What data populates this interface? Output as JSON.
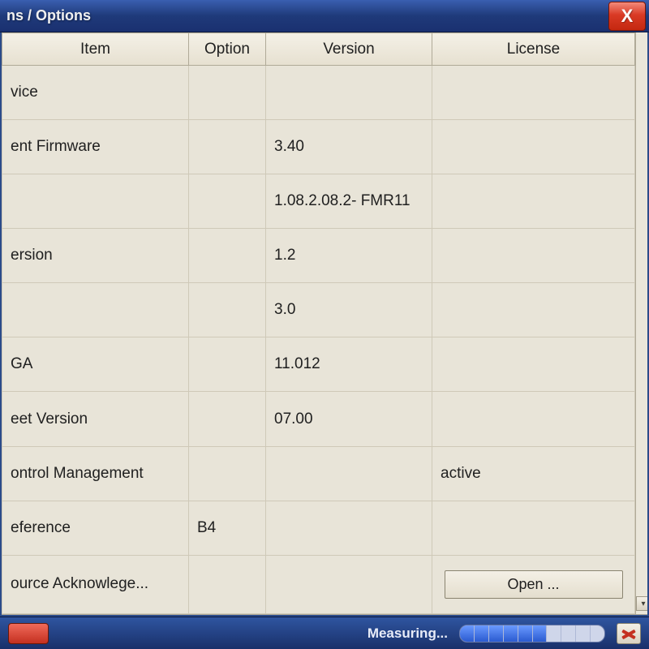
{
  "window": {
    "title": "ns / Options",
    "close_glyph": "X"
  },
  "columns": {
    "item": "Item",
    "option": "Option",
    "version": "Version",
    "license": "License"
  },
  "rows": [
    {
      "item": "vice",
      "option": "",
      "version": "",
      "license": ""
    },
    {
      "item": "ent Firmware",
      "option": "",
      "version": "3.40",
      "license": ""
    },
    {
      "item": "",
      "option": "",
      "version": "1.08.2.08.2- FMR11",
      "license": ""
    },
    {
      "item": "ersion",
      "option": "",
      "version": "1.2",
      "license": ""
    },
    {
      "item": "",
      "option": "",
      "version": "3.0",
      "license": ""
    },
    {
      "item": "GA",
      "option": "",
      "version": "11.012",
      "license": ""
    },
    {
      "item": "eet Version",
      "option": "",
      "version": "07.00",
      "license": ""
    },
    {
      "item": "ontrol Management",
      "option": "",
      "version": "",
      "license": "active"
    },
    {
      "item": "eference",
      "option": "B4",
      "version": "",
      "license": ""
    },
    {
      "item": "ource Acknowlege...",
      "option": "",
      "version": "",
      "license_button": "Open ..."
    }
  ],
  "status": {
    "label": "Measuring...",
    "progress_segments": 10,
    "progress_filled": 6
  },
  "colors": {
    "titlebar_grad_top": "#3a5fb0",
    "titlebar_grad_bottom": "#1a3070",
    "close_red": "#d93a25",
    "client_bg": "#e8e4d8",
    "grid_border": "#cfc9b8",
    "header_border": "#b0aa98",
    "text": "#202020",
    "status_grad_top": "#2f55a0",
    "status_grad_bottom": "#19306a",
    "progress_on": "#2a5ad0",
    "progress_track": "#cfd6ea"
  }
}
